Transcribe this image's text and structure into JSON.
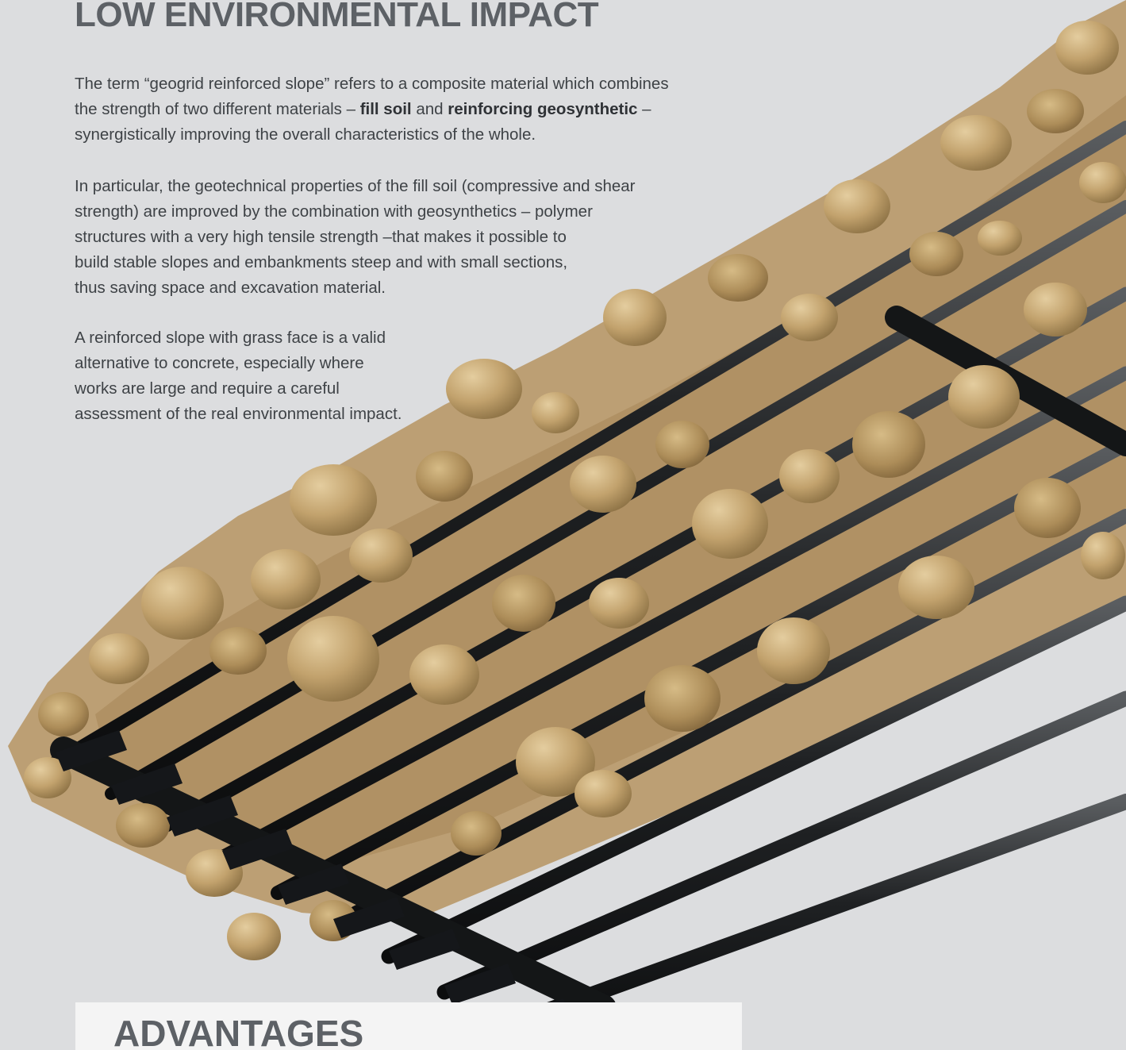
{
  "heading": "LOW ENVIRONMENTAL IMPACT",
  "paragraph_1": {
    "line_1": "The term “geogrid reinforced slope” refers to a composite material which combines",
    "line_2_pre": "the strength of two different materials – ",
    "line_2_bold_1": "fill soil",
    "line_2_mid": " and ",
    "line_2_bold_2": "reinforcing geosynthetic",
    "line_2_post": " –",
    "line_3": "synergistically improving the overall characteristics of the whole."
  },
  "paragraph_2": {
    "lines": [
      "In particular, the geotechnical properties of the fill soil (compressive and shear",
      "strength) are improved by the combination with geosynthetics – polymer",
      "structures with a very high tensile strength –that makes it possible to",
      "build stable slopes and embankments steep and with small sections,",
      "thus saving space and excavation material."
    ]
  },
  "paragraph_3": {
    "lines": [
      "A reinforced slope with grass face is a valid",
      "alternative to concrete, especially where",
      "works are large and require a careful",
      "assessment of the real environmental impact."
    ]
  },
  "advantages_title": "ADVANTAGES",
  "colors": {
    "background": "#dcdddf",
    "heading": "#5d6166",
    "body_text": "#3e4246",
    "soil": "#c2a26d",
    "geogrid": "#1d1f21",
    "advantages_box": "#f4f4f4"
  },
  "image": {
    "subject": "soil-with-geogrid-photo"
  }
}
